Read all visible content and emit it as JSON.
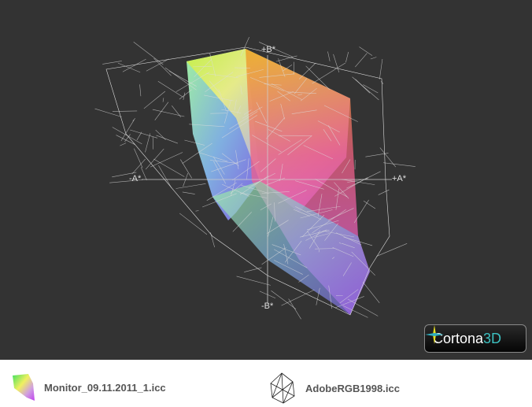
{
  "viewer": {
    "axes": {
      "plus_b": "+B*",
      "minus_b": "-B*",
      "plus_a": "+A*",
      "minus_a": "-A*"
    },
    "background_color": "#333333",
    "logo": {
      "text": "Cortona",
      "text_3d": "3D"
    }
  },
  "legend": {
    "items": [
      {
        "label": "Monitor_09.11.2011_1.icc",
        "icon": "color-gamut-solid-icon"
      },
      {
        "label": "AdobeRGB1998.icc",
        "icon": "wireframe-gamut-icon"
      }
    ]
  }
}
